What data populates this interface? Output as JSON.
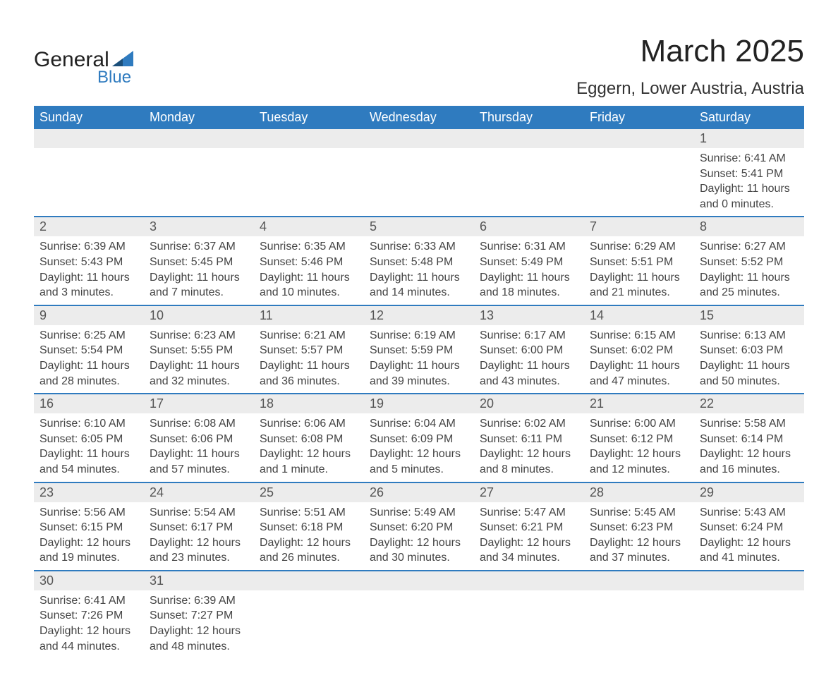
{
  "brand": {
    "word1": "General",
    "word2": "Blue"
  },
  "title": "March 2025",
  "location": "Eggern, Lower Austria, Austria",
  "colors": {
    "header_bg": "#2f7bbf",
    "header_text": "#ffffff",
    "daynum_bg": "#ececec",
    "border": "#2f7bbf",
    "text": "#444444",
    "brand_blue": "#2f7bbf"
  },
  "weekdays": [
    "Sunday",
    "Monday",
    "Tuesday",
    "Wednesday",
    "Thursday",
    "Friday",
    "Saturday"
  ],
  "weeks": [
    [
      {
        "num": "",
        "sunrise": "",
        "sunset": "",
        "daylight": ""
      },
      {
        "num": "",
        "sunrise": "",
        "sunset": "",
        "daylight": ""
      },
      {
        "num": "",
        "sunrise": "",
        "sunset": "",
        "daylight": ""
      },
      {
        "num": "",
        "sunrise": "",
        "sunset": "",
        "daylight": ""
      },
      {
        "num": "",
        "sunrise": "",
        "sunset": "",
        "daylight": ""
      },
      {
        "num": "",
        "sunrise": "",
        "sunset": "",
        "daylight": ""
      },
      {
        "num": "1",
        "sunrise": "Sunrise: 6:41 AM",
        "sunset": "Sunset: 5:41 PM",
        "daylight": "Daylight: 11 hours and 0 minutes."
      }
    ],
    [
      {
        "num": "2",
        "sunrise": "Sunrise: 6:39 AM",
        "sunset": "Sunset: 5:43 PM",
        "daylight": "Daylight: 11 hours and 3 minutes."
      },
      {
        "num": "3",
        "sunrise": "Sunrise: 6:37 AM",
        "sunset": "Sunset: 5:45 PM",
        "daylight": "Daylight: 11 hours and 7 minutes."
      },
      {
        "num": "4",
        "sunrise": "Sunrise: 6:35 AM",
        "sunset": "Sunset: 5:46 PM",
        "daylight": "Daylight: 11 hours and 10 minutes."
      },
      {
        "num": "5",
        "sunrise": "Sunrise: 6:33 AM",
        "sunset": "Sunset: 5:48 PM",
        "daylight": "Daylight: 11 hours and 14 minutes."
      },
      {
        "num": "6",
        "sunrise": "Sunrise: 6:31 AM",
        "sunset": "Sunset: 5:49 PM",
        "daylight": "Daylight: 11 hours and 18 minutes."
      },
      {
        "num": "7",
        "sunrise": "Sunrise: 6:29 AM",
        "sunset": "Sunset: 5:51 PM",
        "daylight": "Daylight: 11 hours and 21 minutes."
      },
      {
        "num": "8",
        "sunrise": "Sunrise: 6:27 AM",
        "sunset": "Sunset: 5:52 PM",
        "daylight": "Daylight: 11 hours and 25 minutes."
      }
    ],
    [
      {
        "num": "9",
        "sunrise": "Sunrise: 6:25 AM",
        "sunset": "Sunset: 5:54 PM",
        "daylight": "Daylight: 11 hours and 28 minutes."
      },
      {
        "num": "10",
        "sunrise": "Sunrise: 6:23 AM",
        "sunset": "Sunset: 5:55 PM",
        "daylight": "Daylight: 11 hours and 32 minutes."
      },
      {
        "num": "11",
        "sunrise": "Sunrise: 6:21 AM",
        "sunset": "Sunset: 5:57 PM",
        "daylight": "Daylight: 11 hours and 36 minutes."
      },
      {
        "num": "12",
        "sunrise": "Sunrise: 6:19 AM",
        "sunset": "Sunset: 5:59 PM",
        "daylight": "Daylight: 11 hours and 39 minutes."
      },
      {
        "num": "13",
        "sunrise": "Sunrise: 6:17 AM",
        "sunset": "Sunset: 6:00 PM",
        "daylight": "Daylight: 11 hours and 43 minutes."
      },
      {
        "num": "14",
        "sunrise": "Sunrise: 6:15 AM",
        "sunset": "Sunset: 6:02 PM",
        "daylight": "Daylight: 11 hours and 47 minutes."
      },
      {
        "num": "15",
        "sunrise": "Sunrise: 6:13 AM",
        "sunset": "Sunset: 6:03 PM",
        "daylight": "Daylight: 11 hours and 50 minutes."
      }
    ],
    [
      {
        "num": "16",
        "sunrise": "Sunrise: 6:10 AM",
        "sunset": "Sunset: 6:05 PM",
        "daylight": "Daylight: 11 hours and 54 minutes."
      },
      {
        "num": "17",
        "sunrise": "Sunrise: 6:08 AM",
        "sunset": "Sunset: 6:06 PM",
        "daylight": "Daylight: 11 hours and 57 minutes."
      },
      {
        "num": "18",
        "sunrise": "Sunrise: 6:06 AM",
        "sunset": "Sunset: 6:08 PM",
        "daylight": "Daylight: 12 hours and 1 minute."
      },
      {
        "num": "19",
        "sunrise": "Sunrise: 6:04 AM",
        "sunset": "Sunset: 6:09 PM",
        "daylight": "Daylight: 12 hours and 5 minutes."
      },
      {
        "num": "20",
        "sunrise": "Sunrise: 6:02 AM",
        "sunset": "Sunset: 6:11 PM",
        "daylight": "Daylight: 12 hours and 8 minutes."
      },
      {
        "num": "21",
        "sunrise": "Sunrise: 6:00 AM",
        "sunset": "Sunset: 6:12 PM",
        "daylight": "Daylight: 12 hours and 12 minutes."
      },
      {
        "num": "22",
        "sunrise": "Sunrise: 5:58 AM",
        "sunset": "Sunset: 6:14 PM",
        "daylight": "Daylight: 12 hours and 16 minutes."
      }
    ],
    [
      {
        "num": "23",
        "sunrise": "Sunrise: 5:56 AM",
        "sunset": "Sunset: 6:15 PM",
        "daylight": "Daylight: 12 hours and 19 minutes."
      },
      {
        "num": "24",
        "sunrise": "Sunrise: 5:54 AM",
        "sunset": "Sunset: 6:17 PM",
        "daylight": "Daylight: 12 hours and 23 minutes."
      },
      {
        "num": "25",
        "sunrise": "Sunrise: 5:51 AM",
        "sunset": "Sunset: 6:18 PM",
        "daylight": "Daylight: 12 hours and 26 minutes."
      },
      {
        "num": "26",
        "sunrise": "Sunrise: 5:49 AM",
        "sunset": "Sunset: 6:20 PM",
        "daylight": "Daylight: 12 hours and 30 minutes."
      },
      {
        "num": "27",
        "sunrise": "Sunrise: 5:47 AM",
        "sunset": "Sunset: 6:21 PM",
        "daylight": "Daylight: 12 hours and 34 minutes."
      },
      {
        "num": "28",
        "sunrise": "Sunrise: 5:45 AM",
        "sunset": "Sunset: 6:23 PM",
        "daylight": "Daylight: 12 hours and 37 minutes."
      },
      {
        "num": "29",
        "sunrise": "Sunrise: 5:43 AM",
        "sunset": "Sunset: 6:24 PM",
        "daylight": "Daylight: 12 hours and 41 minutes."
      }
    ],
    [
      {
        "num": "30",
        "sunrise": "Sunrise: 6:41 AM",
        "sunset": "Sunset: 7:26 PM",
        "daylight": "Daylight: 12 hours and 44 minutes."
      },
      {
        "num": "31",
        "sunrise": "Sunrise: 6:39 AM",
        "sunset": "Sunset: 7:27 PM",
        "daylight": "Daylight: 12 hours and 48 minutes."
      },
      {
        "num": "",
        "sunrise": "",
        "sunset": "",
        "daylight": ""
      },
      {
        "num": "",
        "sunrise": "",
        "sunset": "",
        "daylight": ""
      },
      {
        "num": "",
        "sunrise": "",
        "sunset": "",
        "daylight": ""
      },
      {
        "num": "",
        "sunrise": "",
        "sunset": "",
        "daylight": ""
      },
      {
        "num": "",
        "sunrise": "",
        "sunset": "",
        "daylight": ""
      }
    ]
  ]
}
